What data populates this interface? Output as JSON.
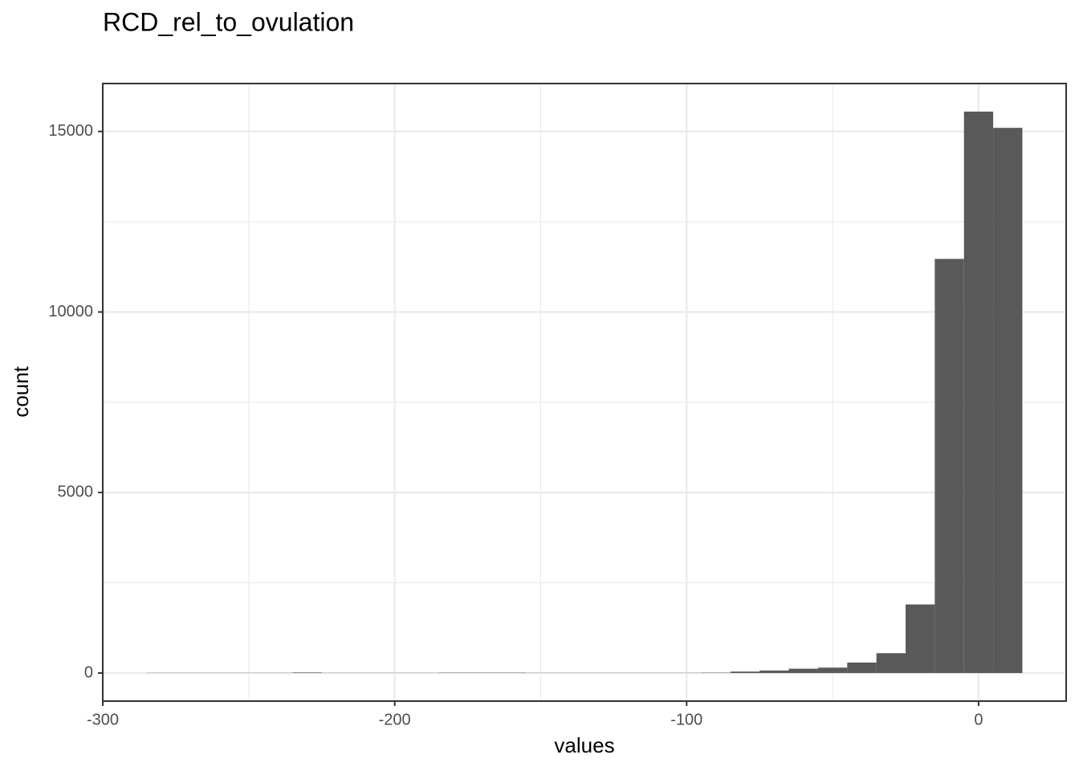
{
  "chart_data": {
    "type": "histogram",
    "title": "RCD_rel_to_ovulation",
    "x_label": "values",
    "y_label": "count",
    "bins": [
      -285,
      -275,
      -265,
      -255,
      -245,
      -235,
      -225,
      -215,
      -205,
      -195,
      -185,
      -175,
      -165,
      -155,
      -145,
      -135,
      -125,
      -115,
      -105,
      -95,
      -85,
      -75,
      -65,
      -55,
      -45,
      -35,
      -25,
      -15,
      -5,
      5,
      15
    ],
    "values": [
      5,
      5,
      5,
      5,
      5,
      15,
      5,
      5,
      5,
      5,
      10,
      10,
      10,
      5,
      5,
      5,
      5,
      5,
      5,
      10,
      40,
      70,
      120,
      150,
      290,
      550,
      1900,
      11470,
      15550,
      15100
    ],
    "color": "#595959",
    "xlim": [
      -300,
      30
    ],
    "xticks": [
      -300,
      -200,
      -100,
      0
    ],
    "x_minor_grid": [
      -250,
      -150,
      -50
    ],
    "ylim": [
      -777.5,
      16327.5
    ],
    "yticks": [
      0,
      5000,
      10000,
      15000
    ],
    "y_minor_grid": [
      2500,
      7500,
      12500
    ],
    "grid": true
  }
}
